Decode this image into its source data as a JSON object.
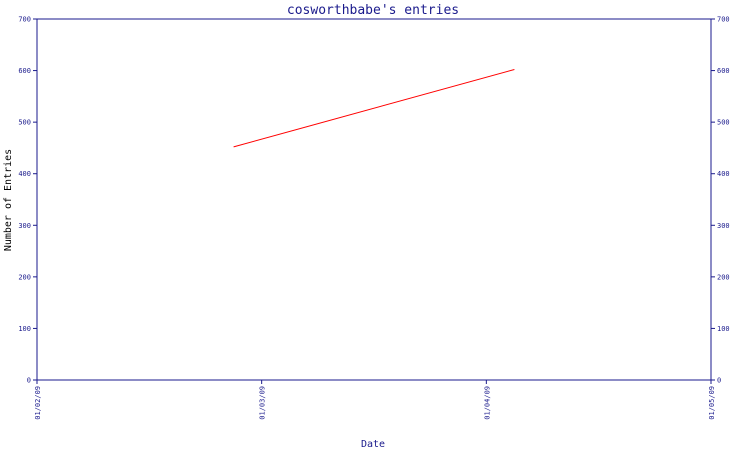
{
  "chart_data": {
    "type": "line",
    "title": "cosworthbabe's entries",
    "xlabel": "Date",
    "ylabel": "Number of Entries",
    "x_ticks": [
      "01/02/09",
      "01/03/09",
      "01/04/09",
      "01/05/09"
    ],
    "x_range": [
      "2009-01-02",
      "2009-01-05"
    ],
    "y_ticks": [
      0,
      100,
      200,
      300,
      400,
      500,
      600,
      700
    ],
    "ylim": [
      0,
      700
    ],
    "right_axis_ticks": true,
    "grid": false,
    "series": [
      {
        "color": "#ff0000",
        "x": [
          "2009-01-02 21:00",
          "2009-01-04 03:00"
        ],
        "y": [
          452,
          602
        ]
      }
    ]
  },
  "colors": {
    "axis": "#1a1a8c",
    "title": "#1a1a8c",
    "line": "#ff0000",
    "background": "#ffffff"
  }
}
